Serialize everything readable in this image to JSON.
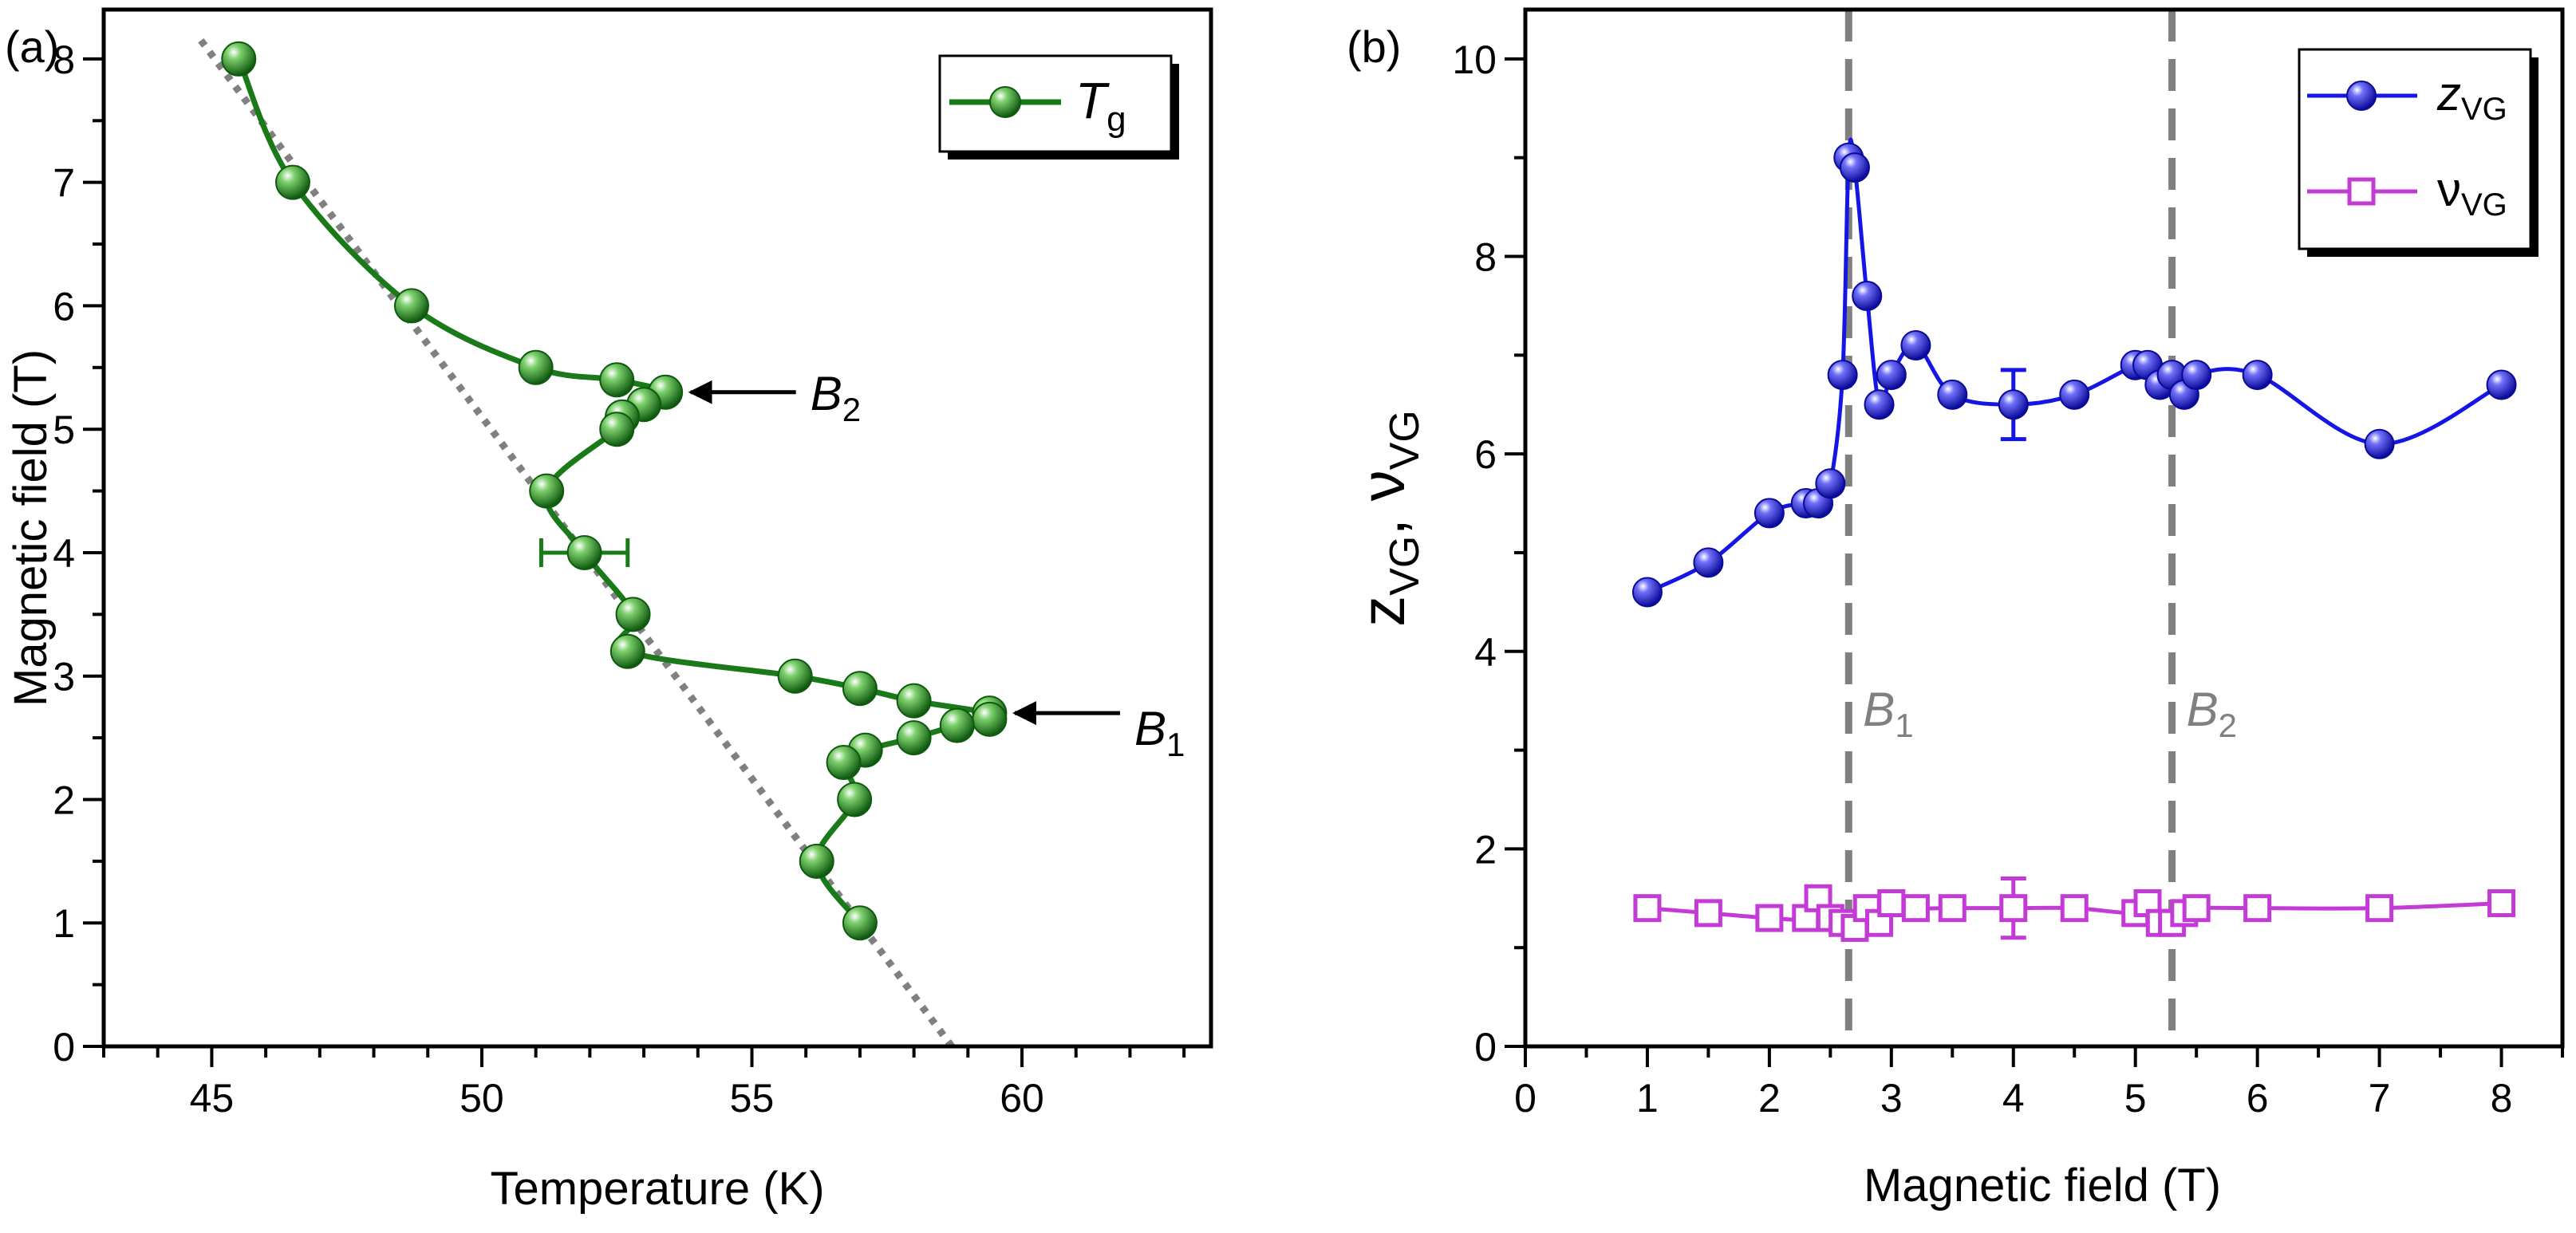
{
  "chart_data": [
    {
      "type": "scatter",
      "panel_label": "(a)",
      "xlabel": "Temperature  (K)",
      "ylabel": "Magnetic field  (T)",
      "xlim": [
        43,
        63.5
      ],
      "ylim": [
        0,
        8.4
      ],
      "xticks": [
        "45",
        "50",
        "55",
        "60"
      ],
      "yticks": [
        "0",
        "1",
        "2",
        "3",
        "4",
        "5",
        "6",
        "7",
        "8"
      ],
      "legend": {
        "position": "top-right",
        "label_main": "T",
        "label_sub": "g"
      },
      "colors": {
        "series": "#1a7a1a",
        "dotted": "#808080"
      },
      "series": [
        {
          "name": "Tg",
          "points": [
            {
              "x": 45.5,
              "y": 8.0
            },
            {
              "x": 46.5,
              "y": 7.0
            },
            {
              "x": 48.7,
              "y": 6.0
            },
            {
              "x": 51.0,
              "y": 5.5
            },
            {
              "x": 52.5,
              "y": 5.4
            },
            {
              "x": 53.4,
              "y": 5.3
            },
            {
              "x": 53.0,
              "y": 5.2
            },
            {
              "x": 52.6,
              "y": 5.1
            },
            {
              "x": 52.5,
              "y": 5.0
            },
            {
              "x": 51.2,
              "y": 4.5
            },
            {
              "x": 51.9,
              "y": 4.0,
              "xerr": 0.8
            },
            {
              "x": 52.8,
              "y": 3.5
            },
            {
              "x": 52.7,
              "y": 3.2
            },
            {
              "x": 55.8,
              "y": 3.0
            },
            {
              "x": 57.0,
              "y": 2.9
            },
            {
              "x": 58.0,
              "y": 2.8
            },
            {
              "x": 59.4,
              "y": 2.7
            },
            {
              "x": 59.4,
              "y": 2.65
            },
            {
              "x": 58.8,
              "y": 2.6
            },
            {
              "x": 58.0,
              "y": 2.5
            },
            {
              "x": 57.1,
              "y": 2.4
            },
            {
              "x": 56.7,
              "y": 2.3
            },
            {
              "x": 56.9,
              "y": 2.0
            },
            {
              "x": 56.2,
              "y": 1.5
            },
            {
              "x": 57.0,
              "y": 1.0
            }
          ]
        }
      ],
      "dotted_line": {
        "from": {
          "x": 44.8,
          "y": 8.15
        },
        "to": {
          "x": 58.7,
          "y": 0.0
        }
      },
      "annotations": [
        {
          "label_main": "B",
          "label_sub": "2",
          "arrow_to": {
            "x": 53.6,
            "y": 5.3
          }
        },
        {
          "label_main": "B",
          "label_sub": "1",
          "arrow_to": {
            "x": 59.6,
            "y": 2.7
          }
        }
      ]
    },
    {
      "type": "scatter",
      "panel_label": "(b)",
      "xlabel": "Magnetic field  (T)",
      "ylabel_parts": [
        "z",
        "VG",
        ",  ν",
        "VG"
      ],
      "xlim": [
        0,
        8.5
      ],
      "ylim": [
        0,
        10.5
      ],
      "xticks": [
        "0",
        "1",
        "2",
        "3",
        "4",
        "5",
        "6",
        "7",
        "8"
      ],
      "yticks": [
        "0",
        "2",
        "4",
        "6",
        "8",
        "10"
      ],
      "legend": {
        "position": "top-right"
      },
      "colors": {
        "z": "#1515e6",
        "nu": "#c43ad6",
        "dashed": "#808080"
      },
      "vlines": [
        {
          "x": 2.65,
          "label_main": "B",
          "label_sub": "1"
        },
        {
          "x": 5.3,
          "label_main": "B",
          "label_sub": "2"
        }
      ],
      "series": [
        {
          "name": "zVG",
          "label_main": "z",
          "label_sub": "VG",
          "marker": "filled-circle",
          "points": [
            {
              "x": 1.0,
              "y": 4.6
            },
            {
              "x": 1.5,
              "y": 4.9
            },
            {
              "x": 2.0,
              "y": 5.4
            },
            {
              "x": 2.3,
              "y": 5.5
            },
            {
              "x": 2.4,
              "y": 5.5
            },
            {
              "x": 2.5,
              "y": 5.7
            },
            {
              "x": 2.6,
              "y": 6.8
            },
            {
              "x": 2.65,
              "y": 9.0
            },
            {
              "x": 2.7,
              "y": 8.9
            },
            {
              "x": 2.8,
              "y": 7.6
            },
            {
              "x": 2.9,
              "y": 6.5
            },
            {
              "x": 3.0,
              "y": 6.8
            },
            {
              "x": 3.2,
              "y": 7.1
            },
            {
              "x": 3.5,
              "y": 6.6
            },
            {
              "x": 4.0,
              "y": 6.5,
              "yerr": 0.35
            },
            {
              "x": 4.5,
              "y": 6.6
            },
            {
              "x": 5.0,
              "y": 6.9
            },
            {
              "x": 5.1,
              "y": 6.9
            },
            {
              "x": 5.2,
              "y": 6.7
            },
            {
              "x": 5.3,
              "y": 6.8
            },
            {
              "x": 5.4,
              "y": 6.6
            },
            {
              "x": 5.5,
              "y": 6.8
            },
            {
              "x": 6.0,
              "y": 6.8
            },
            {
              "x": 7.0,
              "y": 6.1
            },
            {
              "x": 8.0,
              "y": 6.7
            }
          ]
        },
        {
          "name": "nuVG",
          "label_main": "ν",
          "label_sub": "VG",
          "marker": "open-square",
          "points": [
            {
              "x": 1.0,
              "y": 1.4
            },
            {
              "x": 1.5,
              "y": 1.35
            },
            {
              "x": 2.0,
              "y": 1.3
            },
            {
              "x": 2.3,
              "y": 1.3
            },
            {
              "x": 2.4,
              "y": 1.5
            },
            {
              "x": 2.5,
              "y": 1.3
            },
            {
              "x": 2.6,
              "y": 1.25
            },
            {
              "x": 2.7,
              "y": 1.2
            },
            {
              "x": 2.8,
              "y": 1.4
            },
            {
              "x": 2.9,
              "y": 1.25
            },
            {
              "x": 3.0,
              "y": 1.45
            },
            {
              "x": 3.2,
              "y": 1.4
            },
            {
              "x": 3.5,
              "y": 1.4
            },
            {
              "x": 4.0,
              "y": 1.4,
              "yerr": 0.3
            },
            {
              "x": 4.5,
              "y": 1.4
            },
            {
              "x": 5.0,
              "y": 1.35
            },
            {
              "x": 5.1,
              "y": 1.45
            },
            {
              "x": 5.2,
              "y": 1.25
            },
            {
              "x": 5.3,
              "y": 1.25
            },
            {
              "x": 5.4,
              "y": 1.35
            },
            {
              "x": 5.5,
              "y": 1.4
            },
            {
              "x": 6.0,
              "y": 1.4
            },
            {
              "x": 7.0,
              "y": 1.4
            },
            {
              "x": 8.0,
              "y": 1.45
            }
          ]
        }
      ]
    }
  ]
}
